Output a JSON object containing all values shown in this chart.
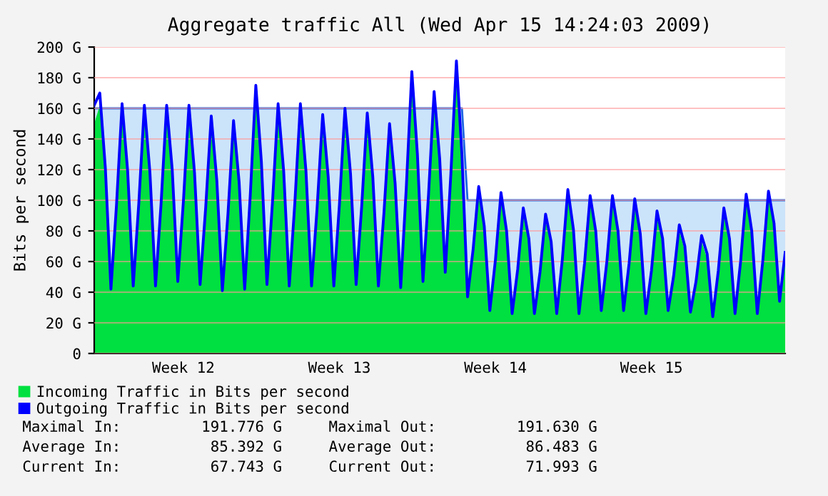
{
  "chart_data": {
    "type": "area",
    "title": "Aggregate traffic All (Wed Apr 15 14:24:03 2009)",
    "ylabel": "Bits per second",
    "categories": [
      null,
      null,
      null,
      null,
      null,
      null,
      null,
      null,
      null,
      null,
      null,
      null,
      null,
      null,
      null,
      null,
      "Week 12",
      null,
      null,
      null,
      null,
      null,
      null,
      null,
      null,
      null,
      null,
      null,
      null,
      null,
      null,
      null,
      null,
      null,
      null,
      null,
      null,
      null,
      null,
      null,
      null,
      null,
      null,
      null,
      "Week 13",
      null,
      null,
      null,
      null,
      null,
      null,
      null,
      null,
      null,
      null,
      null,
      null,
      null,
      null,
      null,
      null,
      null,
      null,
      null,
      null,
      null,
      null,
      null,
      null,
      null,
      null,
      null,
      "Week 14",
      null,
      null,
      null,
      null,
      null,
      null,
      null,
      null,
      null,
      null,
      null,
      null,
      null,
      null,
      null,
      null,
      null,
      null,
      null,
      null,
      null,
      null,
      null,
      null,
      null,
      null,
      null,
      "Week 15",
      null,
      null,
      null,
      null,
      null,
      null,
      null,
      null,
      null,
      null,
      null,
      null,
      null,
      null,
      null,
      null,
      null,
      null,
      null,
      null,
      null,
      null,
      null,
      null
    ],
    "ylim": [
      0,
      200
    ],
    "yticks": [
      {
        "value": 0,
        "label": "0"
      },
      {
        "value": 20,
        "label": "20 G"
      },
      {
        "value": 40,
        "label": "40 G"
      },
      {
        "value": 60,
        "label": "60 G"
      },
      {
        "value": 80,
        "label": "80 G"
      },
      {
        "value": 100,
        "label": "100 G"
      },
      {
        "value": 120,
        "label": "120 G"
      },
      {
        "value": 140,
        "label": "140 G"
      },
      {
        "value": 160,
        "label": "160 G"
      },
      {
        "value": 180,
        "label": "180 G"
      },
      {
        "value": 200,
        "label": "200 G"
      }
    ],
    "grid": "y",
    "legend": "bottom",
    "series": [
      {
        "type": "area",
        "color": "#cce4fa",
        "values": [
          160,
          160,
          160,
          160,
          160,
          160,
          160,
          160,
          160,
          160,
          160,
          160,
          160,
          160,
          160,
          160,
          160,
          160,
          160,
          160,
          160,
          160,
          160,
          160,
          160,
          160,
          160,
          160,
          160,
          160,
          160,
          160,
          160,
          160,
          160,
          160,
          160,
          160,
          160,
          160,
          160,
          160,
          160,
          160,
          160,
          160,
          160,
          160,
          160,
          160,
          160,
          160,
          160,
          160,
          160,
          160,
          160,
          160,
          160,
          160,
          160,
          160,
          160,
          160,
          160,
          160,
          160,
          100,
          100,
          100,
          100,
          100,
          100,
          100,
          100,
          100,
          100,
          100,
          100,
          100,
          100,
          100,
          100,
          100,
          100,
          100,
          100,
          100,
          100,
          100,
          100,
          100,
          100,
          100,
          100,
          100,
          100,
          100,
          100,
          100,
          100,
          100,
          100,
          100,
          100,
          100,
          100,
          100,
          100,
          100,
          100,
          100,
          100,
          100,
          100,
          100,
          100,
          100,
          100,
          100,
          100,
          100,
          100,
          100,
          100
        ]
      },
      {
        "name": "Incoming Traffic in Bits per second",
        "color": "#00e040",
        "values": [
          150,
          162,
          118,
          42,
          94,
          159,
          116,
          44,
          95,
          158,
          115,
          44,
          95,
          158,
          117,
          47,
          96,
          158,
          115,
          45,
          92,
          151,
          110,
          41,
          88,
          148,
          109,
          42,
          100,
          171,
          122,
          45,
          96,
          159,
          116,
          44,
          95,
          159,
          116,
          44,
          92,
          152,
          112,
          44,
          94,
          156,
          114,
          45,
          93,
          153,
          112,
          44,
          89,
          146,
          108,
          43,
          105,
          179,
          127,
          47,
          101,
          167,
          124,
          53,
          114,
          191,
          126,
          37,
          65,
          105,
          80,
          28,
          58,
          101,
          77,
          26,
          52,
          91,
          72,
          26,
          50,
          87,
          70,
          26,
          58,
          103,
          78,
          26,
          56,
          99,
          77,
          28,
          57,
          99,
          77,
          28,
          56,
          97,
          75,
          26,
          51,
          89,
          72,
          28,
          48,
          80,
          67,
          27,
          44,
          73,
          62,
          24,
          51,
          91,
          72,
          26,
          57,
          100,
          77,
          26,
          58,
          102,
          82,
          34,
          64
        ]
      },
      {
        "type": "line",
        "name": "Outgoing Traffic in Bits per second",
        "color": "#0000ff",
        "values": [
          162,
          170,
          121,
          42,
          97,
          163,
          119,
          44,
          98,
          162,
          118,
          44,
          98,
          162,
          120,
          47,
          99,
          162,
          118,
          45,
          95,
          155,
          113,
          41,
          91,
          152,
          112,
          42,
          103,
          175,
          125,
          45,
          99,
          163,
          119,
          44,
          98,
          163,
          119,
          44,
          95,
          156,
          115,
          44,
          97,
          160,
          117,
          45,
          96,
          157,
          115,
          44,
          92,
          150,
          111,
          43,
          108,
          184,
          130,
          47,
          104,
          171,
          127,
          53,
          117,
          191,
          129,
          37,
          68,
          109,
          83,
          28,
          61,
          105,
          80,
          26,
          55,
          95,
          75,
          26,
          53,
          91,
          73,
          26,
          61,
          107,
          81,
          26,
          59,
          103,
          80,
          28,
          60,
          103,
          80,
          28,
          59,
          101,
          78,
          26,
          54,
          93,
          75,
          28,
          51,
          84,
          70,
          27,
          47,
          77,
          65,
          24,
          54,
          95,
          75,
          26,
          60,
          104,
          80,
          26,
          61,
          106,
          85,
          34,
          66
        ]
      }
    ],
    "annotations": [
      "Maximal In:         191.776 G",
      "Average In:          85.392 G",
      "Current In:          67.743 G",
      "Maximal Out:         191.630 G",
      "Average Out:          86.483 G",
      "Current Out:          71.993 G"
    ]
  }
}
